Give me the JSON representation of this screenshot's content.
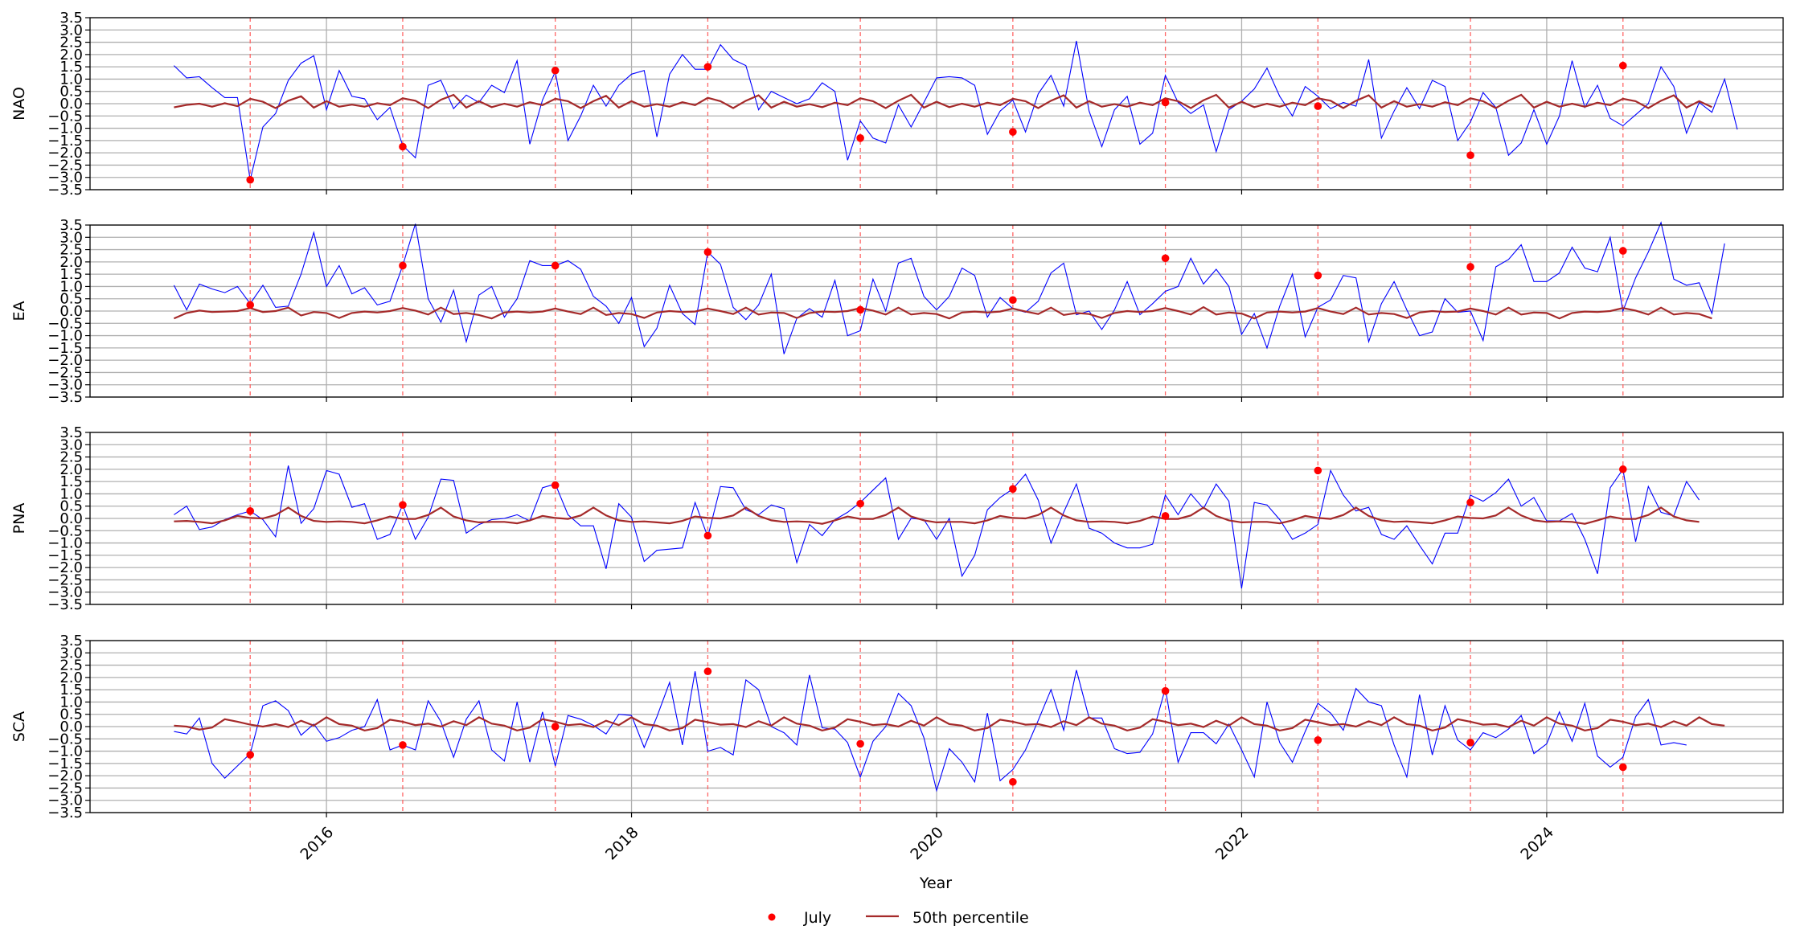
{
  "chart_data": {
    "type": "line",
    "xlabel": "Year",
    "x_range": [
      2014.45,
      2025.55
    ],
    "x_ticks": [
      {
        "value": 2016,
        "label": "2016"
      },
      {
        "value": 2018,
        "label": "2018"
      },
      {
        "value": 2020,
        "label": "2020"
      },
      {
        "value": 2022,
        "label": "2022"
      },
      {
        "value": 2024,
        "label": "2024"
      }
    ],
    "ylim": [
      -3.5,
      3.5
    ],
    "y_ticks": [
      {
        "value": 3.5,
        "label": "3.5"
      },
      {
        "value": 3.0,
        "label": "3.0"
      },
      {
        "value": 2.5,
        "label": "2.5"
      },
      {
        "value": 2.0,
        "label": "2.0"
      },
      {
        "value": 1.5,
        "label": "1.5"
      },
      {
        "value": 1.0,
        "label": "1.0"
      },
      {
        "value": 0.5,
        "label": "0.5"
      },
      {
        "value": 0.0,
        "label": "0.0"
      },
      {
        "value": -0.5,
        "label": "−0.5"
      },
      {
        "value": -1.0,
        "label": "−1.0"
      },
      {
        "value": -1.5,
        "label": "−1.5"
      },
      {
        "value": -2.0,
        "label": "−2.0"
      },
      {
        "value": -2.5,
        "label": "−2.5"
      },
      {
        "value": -3.0,
        "label": "−3.0"
      },
      {
        "value": -3.5,
        "label": "−3.5"
      }
    ],
    "grid": true,
    "july_lines_x": [
      2015.5,
      2016.5,
      2017.5,
      2018.5,
      2019.5,
      2020.5,
      2021.5,
      2022.5,
      2023.5,
      2024.5
    ],
    "legend": {
      "placement": "bottom-center",
      "entries": [
        {
          "label": "July",
          "marker": "dot",
          "color": "#ff0000"
        },
        {
          "label": "50th percentile",
          "marker": "line",
          "color": "#a52a2a"
        }
      ]
    },
    "colors": {
      "index_line": "#0000ff",
      "percentile_line": "#a52a2a",
      "july_marker": "#ff0000",
      "july_vline": "#ff6666",
      "grid": "#b0b0b0"
    },
    "x_start": 2015.0,
    "x_step": 0.08333,
    "panels": [
      {
        "ylabel": "NAO",
        "index_values": [
          1.55,
          1.05,
          1.1,
          0.65,
          0.25,
          0.25,
          -3.1,
          -0.95,
          -0.4,
          0.95,
          1.65,
          1.95,
          -0.25,
          1.35,
          0.3,
          0.2,
          -0.65,
          -0.15,
          -1.7,
          -2.2,
          0.75,
          0.95,
          -0.2,
          0.35,
          0.05,
          0.75,
          0.45,
          1.75,
          -1.65,
          0.15,
          1.3,
          -1.5,
          -0.5,
          0.75,
          -0.1,
          0.75,
          1.2,
          1.35,
          -1.35,
          1.2,
          2.0,
          1.4,
          1.4,
          2.4,
          1.8,
          1.55,
          -0.25,
          0.5,
          0.25,
          0.0,
          0.2,
          0.85,
          0.5,
          -2.3,
          -0.7,
          -1.4,
          -1.6,
          -0.05,
          -0.95,
          0.05,
          1.05,
          1.1,
          1.05,
          0.75,
          -1.25,
          -0.3,
          0.15,
          -1.15,
          0.4,
          1.15,
          -0.1,
          2.55,
          -0.3,
          -1.75,
          -0.25,
          0.3,
          -1.65,
          -1.2,
          1.15,
          0.05,
          -0.4,
          -0.05,
          -1.95,
          -0.25,
          0.1,
          0.6,
          1.45,
          0.3,
          -0.5,
          0.7,
          0.3,
          -0.2,
          0.05,
          -0.1,
          1.8,
          -1.4,
          -0.3,
          0.65,
          -0.2,
          0.95,
          0.7,
          -1.5,
          -0.75,
          0.45,
          -0.15,
          -2.1,
          -1.6,
          -0.25,
          -1.65,
          -0.5,
          1.75,
          -0.15,
          0.75,
          -0.6,
          -0.9,
          -0.45,
          0.0,
          1.5,
          0.7,
          -1.2,
          0.05,
          -0.35,
          1.0,
          -1.05
        ],
        "median_values": [
          -0.15,
          -0.05,
          0.0,
          -0.12,
          0.02,
          -0.1,
          0.2,
          0.08,
          -0.18,
          0.12,
          0.3,
          -0.16,
          0.1,
          -0.12,
          -0.04,
          -0.12,
          0.02,
          -0.06,
          0.22,
          0.12,
          -0.18,
          0.16,
          0.36,
          -0.16,
          0.1,
          -0.14,
          0.0,
          -0.12,
          0.06,
          -0.06,
          0.2,
          0.1,
          -0.18,
          0.1,
          0.32,
          -0.16,
          0.1,
          -0.12,
          -0.02,
          -0.12,
          0.06,
          -0.06,
          0.24,
          0.1,
          -0.18,
          0.12,
          0.34,
          -0.16,
          0.08,
          -0.12,
          -0.02,
          -0.14,
          0.04,
          -0.06,
          0.22,
          0.1,
          -0.18,
          0.12,
          0.36,
          -0.16,
          0.08,
          -0.14,
          0.0,
          -0.12,
          0.04,
          -0.06,
          0.2,
          0.1,
          -0.18,
          0.12,
          0.34,
          -0.16,
          0.1,
          -0.12,
          -0.02,
          -0.12,
          0.04,
          -0.06,
          0.22,
          0.1,
          -0.18,
          0.14,
          0.36,
          -0.16,
          0.08,
          -0.14,
          0.0,
          -0.12,
          0.04,
          -0.06,
          0.22,
          0.12,
          -0.18,
          0.12,
          0.34,
          -0.16,
          0.1,
          -0.12,
          -0.02,
          -0.12,
          0.06,
          -0.06,
          0.22,
          0.1,
          -0.18,
          0.12,
          0.36,
          -0.16,
          0.08,
          -0.12,
          0.0,
          -0.12,
          0.04,
          -0.06,
          0.2,
          0.1,
          -0.18,
          0.12,
          0.34,
          -0.16,
          0.1,
          -0.14
        ],
        "july_points": [
          -3.1,
          -1.75,
          1.35,
          1.5,
          -1.4,
          -1.15,
          0.05,
          -0.1,
          -2.1,
          1.55
        ]
      },
      {
        "ylabel": "EA",
        "index_values": [
          1.05,
          0.05,
          1.1,
          0.9,
          0.75,
          1.0,
          0.3,
          1.05,
          0.15,
          0.2,
          1.5,
          3.2,
          1.0,
          1.85,
          0.7,
          0.95,
          0.25,
          0.4,
          1.85,
          3.55,
          0.5,
          -0.45,
          0.85,
          -1.25,
          0.65,
          1.0,
          -0.25,
          0.5,
          2.05,
          1.85,
          1.85,
          2.05,
          1.7,
          0.6,
          0.2,
          -0.5,
          0.55,
          -1.45,
          -0.7,
          1.05,
          -0.1,
          -0.55,
          2.4,
          1.9,
          0.15,
          -0.35,
          0.25,
          1.5,
          -1.75,
          -0.3,
          0.1,
          -0.25,
          1.25,
          -1.0,
          -0.8,
          1.3,
          0.0,
          1.95,
          2.15,
          0.6,
          0.05,
          0.6,
          1.75,
          1.45,
          -0.25,
          0.55,
          0.1,
          -0.05,
          0.4,
          1.55,
          1.95,
          -0.15,
          0.0,
          -0.75,
          0.05,
          1.2,
          -0.15,
          0.3,
          0.8,
          1.0,
          2.15,
          1.1,
          1.7,
          1.0,
          -0.95,
          -0.1,
          -1.5,
          0.2,
          1.5,
          -1.05,
          0.15,
          0.45,
          1.45,
          1.35,
          -1.25,
          0.3,
          1.2,
          0.05,
          -1.0,
          -0.85,
          0.5,
          -0.05,
          0.0,
          -1.2,
          1.8,
          2.1,
          2.7,
          1.2,
          1.2,
          1.55,
          2.6,
          1.75,
          1.6,
          3.0,
          0.0,
          1.35,
          2.4,
          3.6,
          1.3,
          1.05,
          1.15,
          -0.1,
          2.75
        ],
        "median_values": [
          -0.3,
          -0.08,
          0.02,
          -0.04,
          -0.02,
          0.0,
          0.12,
          -0.04,
          0.0,
          0.14,
          -0.18,
          -0.04,
          -0.08,
          -0.28,
          -0.08,
          -0.02,
          -0.06,
          0.0,
          0.12,
          0.02,
          -0.14,
          0.14,
          -0.12,
          -0.08,
          -0.16,
          -0.3,
          -0.06,
          -0.02,
          -0.06,
          -0.02,
          0.1,
          -0.02,
          -0.12,
          0.14,
          -0.16,
          -0.08,
          -0.12,
          -0.28,
          -0.06,
          0.0,
          -0.04,
          -0.02,
          0.1,
          0.0,
          -0.12,
          0.14,
          -0.14,
          -0.06,
          -0.08,
          -0.28,
          -0.08,
          -0.02,
          -0.04,
          0.0,
          0.12,
          0.02,
          -0.14,
          0.14,
          -0.14,
          -0.08,
          -0.12,
          -0.3,
          -0.06,
          -0.02,
          -0.06,
          -0.02,
          0.1,
          -0.02,
          -0.12,
          0.14,
          -0.16,
          -0.08,
          -0.12,
          -0.28,
          -0.08,
          0.0,
          -0.04,
          0.0,
          0.12,
          0.0,
          -0.14,
          0.16,
          -0.14,
          -0.06,
          -0.1,
          -0.3,
          -0.06,
          -0.02,
          -0.06,
          -0.02,
          0.12,
          -0.02,
          -0.12,
          0.14,
          -0.14,
          -0.08,
          -0.12,
          -0.28,
          -0.06,
          0.0,
          -0.04,
          -0.02,
          0.1,
          0.0,
          -0.14,
          0.14,
          -0.14,
          -0.06,
          -0.08,
          -0.3,
          -0.08,
          -0.02,
          -0.04,
          0.0,
          0.12,
          0.02,
          -0.14,
          0.14,
          -0.14,
          -0.08,
          -0.12,
          -0.3
        ],
        "july_points": [
          0.25,
          1.85,
          1.85,
          2.4,
          0.05,
          0.45,
          2.15,
          1.45,
          1.8,
          2.45
        ]
      },
      {
        "ylabel": "PNA",
        "index_values": [
          0.15,
          0.5,
          -0.45,
          -0.35,
          -0.05,
          0.15,
          0.3,
          -0.05,
          -0.75,
          2.15,
          -0.2,
          0.4,
          1.95,
          1.8,
          0.45,
          0.6,
          -0.85,
          -0.65,
          0.55,
          -0.85,
          0.05,
          1.6,
          1.55,
          -0.6,
          -0.25,
          -0.05,
          0.0,
          0.15,
          -0.1,
          1.25,
          1.4,
          0.15,
          -0.3,
          -0.3,
          -2.05,
          0.6,
          0.05,
          -1.75,
          -1.3,
          -1.25,
          -1.2,
          0.65,
          -0.75,
          1.3,
          1.25,
          0.35,
          0.15,
          0.55,
          0.4,
          -1.8,
          -0.25,
          -0.7,
          -0.05,
          0.25,
          0.65,
          1.15,
          1.65,
          -0.85,
          0.0,
          -0.05,
          -0.85,
          0.0,
          -2.35,
          -1.5,
          0.35,
          0.85,
          1.2,
          1.8,
          0.75,
          -1.0,
          0.25,
          1.4,
          -0.4,
          -0.6,
          -1.0,
          -1.2,
          -1.2,
          -1.05,
          0.95,
          0.15,
          1.0,
          0.4,
          1.4,
          0.7,
          -2.85,
          0.65,
          0.55,
          -0.05,
          -0.85,
          -0.6,
          -0.25,
          1.95,
          0.95,
          0.3,
          0.45,
          -0.65,
          -0.85,
          -0.3,
          -1.1,
          -1.85,
          -0.6,
          -0.6,
          0.95,
          0.7,
          1.05,
          1.6,
          0.5,
          0.85,
          -0.1,
          -0.1,
          0.2,
          -0.85,
          -2.25,
          1.25,
          2.0,
          -0.95,
          1.3,
          0.25,
          0.1,
          1.5,
          0.75
        ],
        "median_values": [
          -0.12,
          -0.1,
          -0.14,
          -0.2,
          -0.08,
          0.1,
          0.02,
          0.0,
          0.14,
          0.44,
          0.1,
          -0.1,
          -0.14,
          -0.12,
          -0.14,
          -0.2,
          -0.08,
          0.08,
          -0.02,
          -0.02,
          0.14,
          0.44,
          0.08,
          -0.08,
          -0.16,
          -0.14,
          -0.14,
          -0.2,
          -0.08,
          0.1,
          0.02,
          -0.02,
          0.12,
          0.44,
          0.12,
          -0.08,
          -0.14,
          -0.12,
          -0.16,
          -0.2,
          -0.1,
          0.08,
          0.02,
          0.0,
          0.12,
          0.44,
          0.1,
          -0.08,
          -0.14,
          -0.12,
          -0.14,
          -0.22,
          -0.08,
          0.08,
          -0.02,
          -0.02,
          0.14,
          0.44,
          0.08,
          -0.08,
          -0.16,
          -0.14,
          -0.14,
          -0.2,
          -0.08,
          0.1,
          0.02,
          0.0,
          0.14,
          0.44,
          0.12,
          -0.08,
          -0.14,
          -0.12,
          -0.14,
          -0.2,
          -0.1,
          0.08,
          -0.02,
          -0.02,
          0.12,
          0.44,
          0.1,
          -0.08,
          -0.16,
          -0.14,
          -0.14,
          -0.2,
          -0.08,
          0.1,
          0.02,
          -0.02,
          0.14,
          0.44,
          0.1,
          -0.08,
          -0.14,
          -0.12,
          -0.16,
          -0.2,
          -0.08,
          0.08,
          0.02,
          0.0,
          0.12,
          0.44,
          0.12,
          -0.08,
          -0.14,
          -0.12,
          -0.14,
          -0.22,
          -0.08,
          0.08,
          -0.02,
          -0.02,
          0.14,
          0.44,
          0.08,
          -0.08,
          -0.14
        ],
        "july_points": [
          0.3,
          0.55,
          1.35,
          -0.7,
          0.6,
          1.2,
          0.1,
          1.95,
          0.65,
          2.0
        ]
      },
      {
        "ylabel": "SCA",
        "index_values": [
          -0.2,
          -0.3,
          0.35,
          -1.5,
          -2.1,
          -1.6,
          -1.1,
          0.85,
          1.05,
          0.65,
          -0.35,
          0.1,
          -0.6,
          -0.45,
          -0.15,
          0.0,
          1.1,
          -0.95,
          -0.75,
          -0.95,
          1.05,
          0.2,
          -1.25,
          0.3,
          1.05,
          -0.95,
          -1.4,
          1.0,
          -1.45,
          0.6,
          -1.6,
          0.45,
          0.3,
          0.05,
          -0.3,
          0.5,
          0.45,
          -0.85,
          0.4,
          1.8,
          -0.75,
          2.25,
          -1.0,
          -0.85,
          -1.15,
          1.9,
          1.5,
          0.0,
          -0.25,
          -0.75,
          2.1,
          -0.05,
          -0.1,
          -0.65,
          -2.05,
          -0.6,
          0.0,
          1.35,
          0.85,
          -0.45,
          -2.6,
          -0.9,
          -1.45,
          -2.25,
          0.55,
          -2.2,
          -1.75,
          -0.95,
          0.25,
          1.5,
          -0.15,
          2.3,
          0.35,
          0.35,
          -0.9,
          -1.1,
          -1.05,
          -0.3,
          1.55,
          -1.45,
          -0.25,
          -0.25,
          -0.7,
          0.1,
          -0.95,
          -2.05,
          1.0,
          -0.65,
          -1.45,
          -0.2,
          0.95,
          0.55,
          -0.15,
          1.55,
          1.0,
          0.85,
          -0.75,
          -2.05,
          1.3,
          -1.15,
          0.85,
          -0.55,
          -0.95,
          -0.25,
          -0.45,
          -0.1,
          0.45,
          -1.1,
          -0.7,
          0.6,
          -0.6,
          0.95,
          -1.2,
          -1.65,
          -1.25,
          0.4,
          1.1,
          -0.75,
          -0.65,
          -0.75
        ],
        "median_values": [
          0.04,
          0.0,
          -0.12,
          -0.04,
          0.3,
          0.2,
          0.08,
          0.0,
          0.1,
          -0.02,
          0.24,
          0.04,
          0.38,
          0.1,
          0.04,
          -0.16,
          -0.06,
          0.28,
          0.2,
          0.06,
          0.12,
          0.0,
          0.22,
          0.06,
          0.38,
          0.12,
          0.04,
          -0.16,
          -0.04,
          0.3,
          0.2,
          0.06,
          0.1,
          -0.02,
          0.24,
          0.06,
          0.38,
          0.1,
          0.04,
          -0.16,
          -0.06,
          0.28,
          0.18,
          0.08,
          0.1,
          -0.02,
          0.22,
          0.04,
          0.38,
          0.12,
          0.04,
          -0.16,
          -0.04,
          0.3,
          0.2,
          0.06,
          0.1,
          0.0,
          0.24,
          0.04,
          0.38,
          0.1,
          0.04,
          -0.16,
          -0.06,
          0.28,
          0.2,
          0.08,
          0.1,
          -0.02,
          0.22,
          0.06,
          0.38,
          0.12,
          0.04,
          -0.16,
          -0.04,
          0.3,
          0.2,
          0.06,
          0.12,
          -0.02,
          0.24,
          0.04,
          0.38,
          0.1,
          0.04,
          -0.16,
          -0.06,
          0.28,
          0.18,
          0.06,
          0.1,
          0.0,
          0.22,
          0.06,
          0.38,
          0.1,
          0.04,
          -0.16,
          -0.04,
          0.3,
          0.2,
          0.08,
          0.1,
          -0.02,
          0.24,
          0.04,
          0.38,
          0.12,
          0.04,
          -0.16,
          -0.06,
          0.28,
          0.2,
          0.06,
          0.12,
          -0.02,
          0.22,
          0.04,
          0.38,
          0.1,
          0.04
        ],
        "july_points": [
          -1.15,
          -0.75,
          0.0,
          2.25,
          -0.7,
          -2.25,
          1.45,
          -0.55,
          -0.65,
          -1.65
        ]
      }
    ]
  }
}
